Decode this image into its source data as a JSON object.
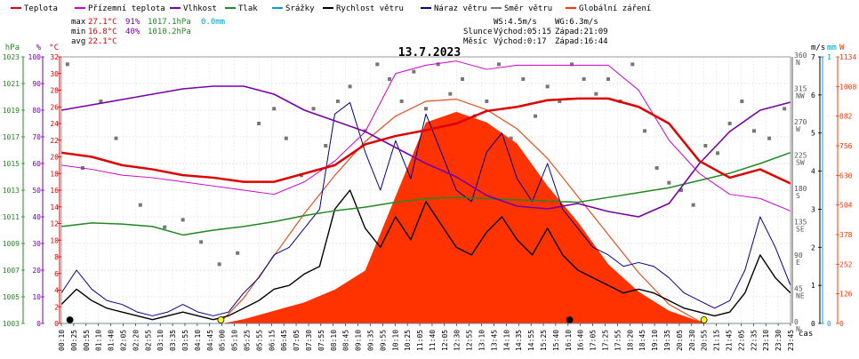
{
  "chart_data": {
    "type": "line",
    "title": "13.7.2023",
    "xlabel": "čas",
    "legend": [
      {
        "name": "Teplota",
        "color": "#dd0000"
      },
      {
        "name": "Přízemní teplota",
        "color": "#cc00cc"
      },
      {
        "name": "Vlhkost",
        "color": "#7700aa"
      },
      {
        "name": "Tlak",
        "color": "#228822"
      },
      {
        "name": "Srážky",
        "color": "#00a0cc"
      },
      {
        "name": "Rychlost větru",
        "color": "#000000"
      },
      {
        "name": "Náraz větru",
        "color": "#000088"
      },
      {
        "name": "Směr větru",
        "color": "#777777"
      },
      {
        "name": "Globální záření",
        "color": "#ff3300"
      }
    ],
    "stats": {
      "max": {
        "label": "max",
        "temp": "27.1°C",
        "hum": "91%",
        "press": "1017.1hPa",
        "rain": "0.0mm"
      },
      "min": {
        "label": "min",
        "temp": "16.8°C",
        "hum": "40%",
        "press": "1010.2hPa"
      },
      "avg": {
        "label": "avg",
        "temp": "22.1°C"
      }
    },
    "wind": {
      "ws": "WS:4.5m/s",
      "wg": "WG:6.3m/s"
    },
    "sun": {
      "label": "Slunce",
      "rise": "Východ:05:15",
      "set": "Západ:21:09"
    },
    "moon": {
      "label": "Měsíc",
      "rise": "Východ:0:17",
      "set": "Západ:16:44"
    },
    "axes": {
      "hpa": {
        "title": "hPa",
        "ticks": [
          "1023",
          "1021",
          "1019",
          "1017",
          "1015",
          "1013",
          "1011",
          "1009",
          "1007",
          "1005",
          "1003"
        ],
        "range": [
          1003,
          1025
        ]
      },
      "pct": {
        "title": "%",
        "ticks": [
          "100",
          "90",
          "80",
          "70",
          "60",
          "50",
          "40",
          "30",
          "20",
          "10",
          "0"
        ],
        "range": [
          0,
          100
        ]
      },
      "degc": {
        "title": "°C",
        "ticks": [
          "32",
          "30",
          "28",
          "26",
          "24",
          "22",
          "20",
          "18",
          "16",
          "14",
          "12",
          "10",
          "8",
          "6",
          "4",
          "2",
          "0"
        ],
        "range": [
          0,
          32
        ]
      },
      "deg": {
        "ticks": [
          "360",
          "315",
          "270",
          "225",
          "180",
          "135",
          "90",
          "45",
          "0"
        ],
        "letters": [
          "N",
          "NW",
          "W",
          "SW",
          "S",
          "SE",
          "E",
          "NE",
          "N"
        ],
        "range": [
          0,
          360
        ]
      },
      "ms": {
        "title": "m/s",
        "ticks": [
          "7",
          "6",
          "5",
          "4",
          "3",
          "2",
          "1",
          "0"
        ],
        "range": [
          0,
          7
        ]
      },
      "mm": {
        "title": "mm",
        "ticks": [
          "1",
          "0"
        ],
        "range": [
          0,
          1
        ]
      },
      "w": {
        "title": "W",
        "ticks": [
          "1134",
          "1008",
          "882",
          "756",
          "630",
          "504",
          "378",
          "252",
          "126",
          "0"
        ],
        "range": [
          0,
          1260
        ]
      }
    },
    "x_ticks": [
      "00:10",
      "00:25",
      "00:55",
      "01:10",
      "01:40",
      "02:05",
      "02:20",
      "02:55",
      "03:10",
      "03:35",
      "03:55",
      "04:10",
      "04:45",
      "05:00",
      "05:10",
      "05:25",
      "05:55",
      "06:15",
      "06:45",
      "07:05",
      "07:30",
      "07:55",
      "08:10",
      "08:45",
      "09:10",
      "09:35",
      "09:55",
      "10:10",
      "10:25",
      "11:05",
      "11:40",
      "12:05",
      "12:30",
      "12:55",
      "13:10",
      "13:45",
      "14:10",
      "14:35",
      "14:55",
      "15:25",
      "15:40",
      "16:10",
      "16:40",
      "17:05",
      "17:25",
      "17:55",
      "18:20",
      "18:45",
      "19:10",
      "19:35",
      "20:05",
      "20:30",
      "20:55",
      "21:15",
      "21:45",
      "22:05",
      "22:35",
      "23:10",
      "23:30",
      "23:45"
    ],
    "series": [
      {
        "name": "Teplota",
        "unit": "°C",
        "x": [
          0,
          1,
          2,
          3,
          4,
          5,
          6,
          7,
          8,
          9,
          10,
          11,
          12,
          13,
          14,
          15,
          16,
          17,
          18,
          19,
          20,
          21,
          22,
          23,
          24
        ],
        "values": [
          20.5,
          20.0,
          19.0,
          18.5,
          17.8,
          17.5,
          17.0,
          17.0,
          18.0,
          19.0,
          21.5,
          22.5,
          23.2,
          24.0,
          25.5,
          26.0,
          26.8,
          27.0,
          27.0,
          26.0,
          24.0,
          19.5,
          17.5,
          18.5,
          16.8
        ]
      },
      {
        "name": "Přízemní teplota",
        "unit": "°C",
        "x": [
          0,
          1,
          2,
          3,
          4,
          5,
          6,
          7,
          8,
          9,
          10,
          11,
          12,
          13,
          14,
          15,
          16,
          17,
          18,
          19,
          20,
          21,
          22,
          23,
          24
        ],
        "values": [
          19.0,
          18.5,
          17.8,
          17.5,
          17.0,
          16.5,
          16.0,
          15.5,
          17.0,
          19.5,
          23.0,
          30.0,
          31.0,
          31.5,
          30.5,
          31.0,
          31.0,
          31.0,
          31.0,
          28.0,
          22.0,
          18.0,
          15.5,
          15.0,
          13.5
        ]
      },
      {
        "name": "Vlhkost",
        "unit": "%",
        "x": [
          0,
          1,
          2,
          3,
          4,
          5,
          6,
          7,
          8,
          9,
          10,
          11,
          12,
          13,
          14,
          15,
          16,
          17,
          18,
          19,
          20,
          21,
          22,
          23,
          24
        ],
        "values": [
          80,
          82,
          84,
          86,
          88,
          89,
          89,
          86,
          80,
          76,
          72,
          66,
          60,
          55,
          48,
          44,
          43,
          45,
          42,
          40,
          45,
          60,
          72,
          80,
          83
        ]
      },
      {
        "name": "Tlak",
        "unit": "hPa",
        "x": [
          0,
          1,
          2,
          3,
          4,
          5,
          6,
          7,
          8,
          9,
          10,
          11,
          12,
          13,
          14,
          15,
          16,
          17,
          18,
          19,
          20,
          21,
          22,
          23,
          24
        ],
        "values": [
          1011.0,
          1011.3,
          1011.2,
          1011.0,
          1010.3,
          1010.7,
          1011.0,
          1011.4,
          1011.9,
          1012.3,
          1012.6,
          1013.0,
          1013.3,
          1013.4,
          1013.3,
          1013.2,
          1013.1,
          1013.0,
          1013.4,
          1013.8,
          1014.2,
          1014.8,
          1015.4,
          1016.2,
          1017.1
        ]
      },
      {
        "name": "Srážky",
        "unit": "mm",
        "x": [
          0,
          24
        ],
        "values": [
          0.0,
          0.0
        ]
      },
      {
        "name": "Rychlost větru",
        "unit": "m/s",
        "x": [
          0,
          0.5,
          1,
          1.5,
          2,
          2.5,
          3,
          3.5,
          4,
          4.5,
          5,
          5.5,
          6,
          6.5,
          7,
          7.5,
          8,
          8.5,
          9,
          9.5,
          10,
          10.5,
          11,
          11.5,
          12,
          12.5,
          13,
          13.5,
          14,
          14.5,
          15,
          15.5,
          16,
          16.5,
          17,
          17.5,
          18,
          18.5,
          19,
          19.5,
          20,
          20.5,
          21,
          21.5,
          22,
          22.5,
          23,
          23.5,
          24
        ],
        "values": [
          0.5,
          0.9,
          0.6,
          0.4,
          0.3,
          0.2,
          0.1,
          0.2,
          0.3,
          0.2,
          0.1,
          0.2,
          0.4,
          0.6,
          0.9,
          1.0,
          1.3,
          1.5,
          3.0,
          3.5,
          2.5,
          2.0,
          2.8,
          2.2,
          3.2,
          2.6,
          2.0,
          1.8,
          2.4,
          2.8,
          2.2,
          1.8,
          2.5,
          1.8,
          1.4,
          1.2,
          1.0,
          0.8,
          0.9,
          0.8,
          0.6,
          0.4,
          0.3,
          0.2,
          0.3,
          0.8,
          1.8,
          1.2,
          0.8
        ]
      },
      {
        "name": "Náraz větru",
        "unit": "m/s",
        "x": [
          0,
          0.5,
          1,
          1.5,
          2,
          2.5,
          3,
          3.5,
          4,
          4.5,
          5,
          5.5,
          6,
          6.5,
          7,
          7.5,
          8,
          8.5,
          9,
          9.5,
          10,
          10.5,
          11,
          11.5,
          12,
          12.5,
          13,
          13.5,
          14,
          14.5,
          15,
          15.5,
          16,
          16.5,
          17,
          17.5,
          18,
          18.5,
          19,
          19.5,
          20,
          20.5,
          21,
          21.5,
          22,
          22.5,
          23,
          23.5,
          24
        ],
        "values": [
          0.8,
          1.4,
          0.9,
          0.6,
          0.5,
          0.3,
          0.2,
          0.3,
          0.5,
          0.3,
          0.2,
          0.3,
          0.8,
          1.2,
          1.8,
          2.0,
          2.5,
          3.0,
          5.5,
          5.8,
          4.5,
          3.5,
          4.8,
          3.8,
          5.5,
          4.5,
          3.5,
          3.2,
          4.5,
          5.0,
          3.8,
          3.2,
          4.2,
          3.0,
          2.5,
          2.0,
          1.8,
          1.5,
          1.6,
          1.5,
          1.2,
          0.8,
          0.6,
          0.4,
          0.6,
          1.4,
          2.8,
          2.0,
          1.0
        ]
      },
      {
        "name": "Globální záření",
        "unit": "W",
        "x": [
          0,
          5.3,
          6,
          7,
          8,
          9,
          10,
          11,
          12,
          13,
          14,
          15,
          16,
          17,
          18,
          19,
          20,
          21,
          21.2,
          24
        ],
        "values": [
          0,
          0,
          20,
          60,
          100,
          160,
          250,
          600,
          950,
          1000,
          950,
          850,
          650,
          480,
          280,
          150,
          60,
          10,
          0,
          0
        ]
      },
      {
        "name": "Globální záření teoretické",
        "unit": "W",
        "x": [
          5.2,
          6,
          7,
          8,
          9,
          10,
          11,
          12,
          13,
          14,
          15,
          16,
          17,
          18,
          19,
          20,
          21,
          21.2
        ],
        "values": [
          0,
          120,
          320,
          520,
          700,
          860,
          980,
          1050,
          1060,
          1010,
          920,
          780,
          600,
          420,
          240,
          90,
          10,
          0
        ]
      }
    ],
    "wind_dir_points": {
      "x": [
        0.2,
        0.7,
        1.3,
        1.8,
        2.6,
        3.4,
        4.0,
        4.6,
        5.2,
        5.8,
        6.5,
        7.0,
        7.4,
        7.9,
        8.3,
        8.7,
        9.1,
        9.5,
        10.0,
        10.4,
        10.8,
        11.2,
        11.6,
        12.0,
        12.4,
        12.8,
        13.2,
        13.6,
        14.0,
        14.4,
        14.8,
        15.2,
        15.6,
        16.0,
        16.4,
        16.8,
        17.2,
        17.6,
        18.0,
        18.4,
        18.8,
        19.2,
        19.6,
        20.0,
        20.4,
        20.8,
        21.2,
        21.6,
        22.0,
        22.4,
        22.8,
        23.3,
        23.8
      ],
      "values": [
        350,
        210,
        300,
        250,
        160,
        130,
        140,
        110,
        80,
        95,
        270,
        290,
        250,
        200,
        290,
        240,
        300,
        320,
        260,
        350,
        330,
        300,
        340,
        290,
        350,
        310,
        330,
        280,
        300,
        350,
        250,
        330,
        280,
        320,
        300,
        350,
        330,
        310,
        330,
        300,
        350,
        260,
        210,
        190,
        180,
        160,
        240,
        230,
        270,
        300,
        260,
        250,
        290
      ]
    },
    "markers": {
      "sunrise_x": 5.25,
      "sunset_x": 21.15,
      "moonrise_x": 0.28,
      "moonset_x": 16.73
    }
  }
}
